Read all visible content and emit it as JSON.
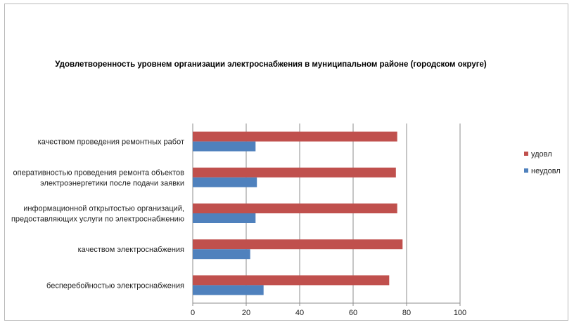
{
  "chart_data": {
    "type": "bar",
    "orientation": "horizontal",
    "title": "Удовлетворенность уровнем организации электроснабжения в муниципальном районе (городском округе)",
    "categories": [
      [
        "качеством проведения ремонтных работ"
      ],
      [
        "оперативностью проведения ремонта объектов",
        "электроэнергетики после подачи заявки"
      ],
      [
        "информационной открытостью организаций,",
        "предоставляющих услуги по электроснабжению"
      ],
      [
        "качеством электроснабжения"
      ],
      [
        "бесперебойностью электроснабжения"
      ]
    ],
    "series": [
      {
        "name": "удовл",
        "color": "#c0504d",
        "values": [
          76.5,
          76,
          76.5,
          78.5,
          73.5
        ]
      },
      {
        "name": "неудовл",
        "color": "#4f81bd",
        "values": [
          23.5,
          24,
          23.5,
          21.5,
          26.5
        ]
      }
    ],
    "xlim": [
      0,
      100
    ],
    "x_ticks": [
      "0",
      "20",
      "40",
      "60",
      "80",
      "100"
    ],
    "grid": true,
    "legend_position": "right"
  }
}
